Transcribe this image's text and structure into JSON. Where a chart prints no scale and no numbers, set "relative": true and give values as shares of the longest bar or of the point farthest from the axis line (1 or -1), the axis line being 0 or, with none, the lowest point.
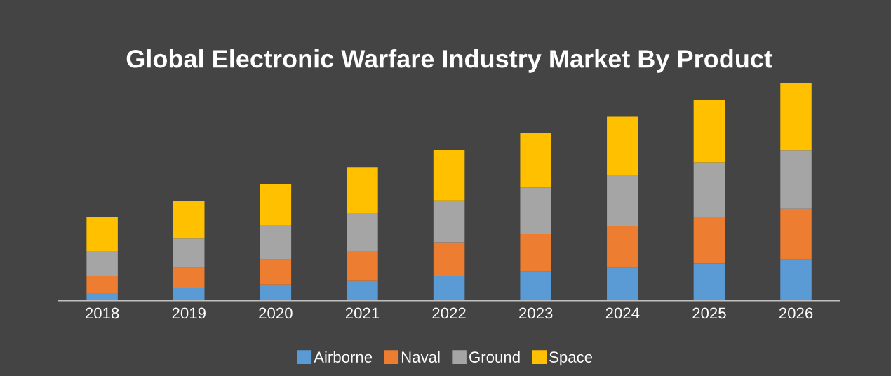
{
  "chart_data": {
    "type": "bar",
    "title": "Global Electronic Warfare Industry Market By Product",
    "stacked": true,
    "relative": true,
    "legend": "bottom",
    "grid": false,
    "categories": [
      "2018",
      "2019",
      "2020",
      "2021",
      "2022",
      "2023",
      "2024",
      "2025",
      "2026"
    ],
    "series": [
      {
        "name": "Airborne",
        "color": "#5b9bd5",
        "values": [
          0.034,
          0.056,
          0.073,
          0.092,
          0.112,
          0.131,
          0.15,
          0.17,
          0.189
        ]
      },
      {
        "name": "Naval",
        "color": "#ed7d31",
        "values": [
          0.077,
          0.094,
          0.116,
          0.135,
          0.155,
          0.174,
          0.193,
          0.212,
          0.232
        ]
      },
      {
        "name": "Ground",
        "color": "#a5a5a5",
        "values": [
          0.116,
          0.137,
          0.155,
          0.176,
          0.193,
          0.215,
          0.232,
          0.253,
          0.27
        ]
      },
      {
        "name": "Space",
        "color": "#ffc000",
        "values": [
          0.155,
          0.172,
          0.193,
          0.21,
          0.232,
          0.249,
          0.27,
          0.288,
          0.309
        ]
      }
    ]
  }
}
